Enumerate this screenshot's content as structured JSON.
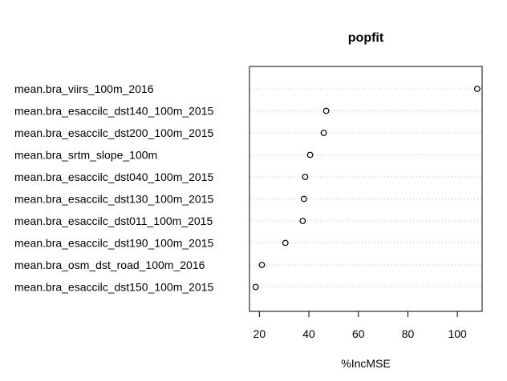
{
  "chart_data": {
    "type": "scatter",
    "title": "popfit",
    "xlabel": "%IncMSE",
    "ylabel": "",
    "xlim": [
      16,
      110
    ],
    "xticks": [
      20,
      40,
      60,
      80,
      100
    ],
    "grid": "dotted horizontal guide lines",
    "marker": "open circle",
    "categories": [
      "mean.bra_viirs_100m_2016",
      "mean.bra_esaccilc_dst140_100m_2015",
      "mean.bra_esaccilc_dst200_100m_2015",
      "mean.bra_srtm_slope_100m",
      "mean.bra_esaccilc_dst040_100m_2015",
      "mean.bra_esaccilc_dst130_100m_2015",
      "mean.bra_esaccilc_dst011_100m_2015",
      "mean.bra_esaccilc_dst190_100m_2015",
      "mean.bra_osm_dst_road_100m_2016",
      "mean.bra_esaccilc_dst150_100m_2015"
    ],
    "values": [
      108,
      47,
      46,
      40.5,
      38.5,
      38,
      37.5,
      30.5,
      21,
      18.5
    ]
  }
}
